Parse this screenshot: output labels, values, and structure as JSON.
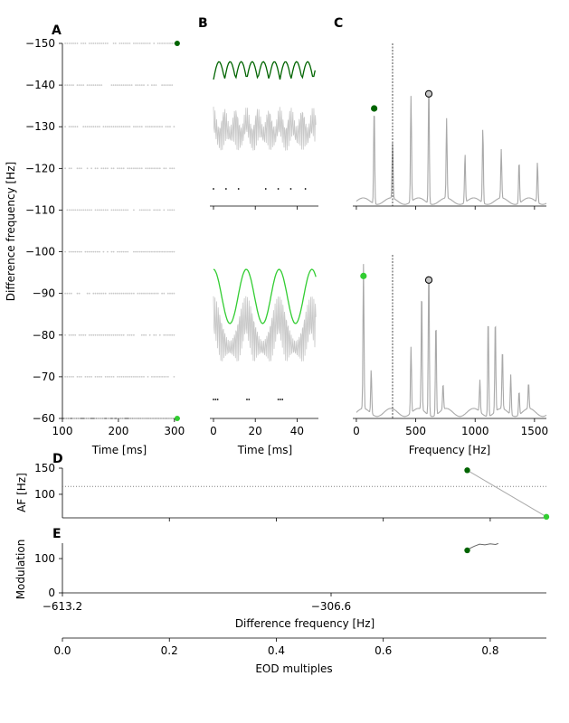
{
  "panels": {
    "A": "A",
    "B": "B",
    "C": "C",
    "D": "D",
    "E": "E"
  },
  "colors": {
    "dark_green": "#006400",
    "light_green": "#32cd32",
    "gray": "#a9a9a9",
    "light_gray": "#c8c8c8",
    "black": "#000000"
  },
  "chart_data": [
    {
      "id": "A",
      "type": "scatter",
      "xlabel": "Time [ms]",
      "ylabel": "Difference frequency [Hz]",
      "xlim": [
        100,
        310
      ],
      "ylim": [
        -150,
        -60
      ],
      "xticks": [
        "100",
        "200",
        "300"
      ],
      "yticks": [
        "−150",
        "−140",
        "−130",
        "−120",
        "−110",
        "−100",
        "−90",
        "−80",
        "−70",
        "−60"
      ],
      "ytick_values": [
        -150,
        -140,
        -130,
        -120,
        -110,
        -100,
        -90,
        -80,
        -70,
        -60
      ],
      "raster_rows_hz": [
        -150,
        -140,
        -130,
        -120,
        -110,
        -100,
        -90,
        -80,
        -70,
        -60
      ],
      "markers": [
        {
          "x": 305,
          "y": -150,
          "color": "#006400"
        },
        {
          "x": 305,
          "y": -60,
          "color": "#32cd32"
        }
      ]
    },
    {
      "id": "B",
      "type": "line",
      "xlabel": "Time [ms]",
      "xlim": [
        -1,
        50
      ],
      "xticks": [
        "0",
        "20",
        "40"
      ],
      "xtick_values": [
        0,
        20,
        40
      ],
      "top_envelope_color": "#006400",
      "bottom_envelope_color": "#32cd32",
      "top_spike_times_ms": [
        0,
        6,
        12,
        25,
        31,
        37,
        44
      ],
      "bottom_spike_times_ms": [
        0,
        1,
        2,
        16,
        17,
        31,
        32,
        33
      ]
    },
    {
      "id": "C",
      "type": "line",
      "xlabel": "Frequency [Hz]",
      "xlim": [
        -30,
        1600
      ],
      "xticks": [
        "0",
        "500",
        "1000",
        "1500"
      ],
      "xtick_values": [
        0,
        500,
        1000,
        1500
      ],
      "vline_hz": 305,
      "top_peaks": [
        [
          150,
          0.6
        ],
        [
          305,
          0.35
        ],
        [
          460,
          0.65
        ],
        [
          610,
          0.76
        ],
        [
          760,
          0.49
        ],
        [
          915,
          0.3
        ],
        [
          1065,
          0.46
        ],
        [
          1220,
          0.3
        ],
        [
          1370,
          0.26
        ],
        [
          1525,
          0.25
        ]
      ],
      "top_markers": [
        {
          "x": 150,
          "y": 0.6,
          "color": "#006400"
        },
        {
          "x": 610,
          "y": 0.69,
          "color": "#c8c8c8"
        }
      ],
      "bottom_peaks": [
        [
          60,
          0.72
        ],
        [
          125,
          0.22
        ],
        [
          460,
          0.33
        ],
        [
          550,
          0.6
        ],
        [
          610,
          0.77
        ],
        [
          670,
          0.47
        ],
        [
          730,
          0.13
        ],
        [
          1040,
          0.16
        ],
        [
          1110,
          0.5
        ],
        [
          1170,
          0.47
        ],
        [
          1230,
          0.3
        ],
        [
          1300,
          0.2
        ],
        [
          1370,
          0.12
        ],
        [
          1450,
          0.13
        ]
      ],
      "bottom_markers": [
        {
          "x": 60,
          "y": 0.71,
          "color": "#32cd32"
        },
        {
          "x": 610,
          "y": 0.69,
          "color": "#c8c8c8"
        }
      ]
    },
    {
      "id": "D",
      "type": "line",
      "ylabel": "AF [Hz]",
      "ylim": [
        55,
        150
      ],
      "yticks": [
        "100",
        "150"
      ],
      "ytick_values": [
        100,
        150
      ],
      "hline": 115,
      "points": [
        {
          "x": 0.757,
          "y": 146,
          "color": "#006400"
        },
        {
          "x": 0.905,
          "y": 57,
          "color": "#32cd32"
        }
      ]
    },
    {
      "id": "E",
      "type": "line",
      "xlabel": "Difference frequency [Hz]",
      "ylabel": "Modulation",
      "ylim": [
        0,
        145
      ],
      "yticks": [
        "0",
        "100"
      ],
      "ytick_values": [
        0,
        100
      ],
      "xticks": [
        "−613.2",
        "−306.6"
      ],
      "points": [
        {
          "x": 0.757,
          "y": 124,
          "color": "#006400"
        }
      ],
      "trace": [
        [
          0.757,
          126
        ],
        [
          0.77,
          136
        ],
        [
          0.78,
          142
        ],
        [
          0.79,
          140
        ],
        [
          0.8,
          143
        ],
        [
          0.81,
          141
        ],
        [
          0.815,
          144
        ]
      ]
    },
    {
      "id": "shared-x",
      "type": "line",
      "xlabel": "EOD multiples",
      "xlim": [
        0,
        0.905
      ],
      "xticks": [
        "0.0",
        "0.2",
        "0.4",
        "0.6",
        "0.8"
      ],
      "xtick_values": [
        0,
        0.2,
        0.4,
        0.6,
        0.8
      ]
    }
  ]
}
